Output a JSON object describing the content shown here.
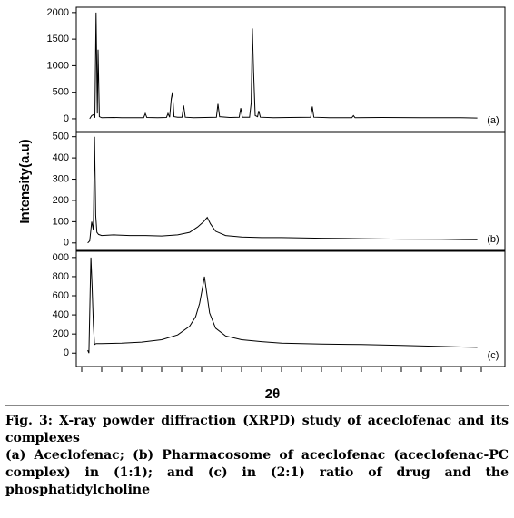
{
  "figure": {
    "xlabel": "2θ",
    "ylabel": "Intensity(a.u)"
  },
  "chart_data": [
    {
      "type": "line",
      "annotation": "(a)",
      "color": "#000000",
      "xlim": [
        0,
        100
      ],
      "ylim": [
        -240,
        2100
      ],
      "yticks": [
        0,
        500,
        1000,
        1500,
        2000
      ],
      "x": [
        2.0,
        2.5,
        3.0,
        3.3,
        3.6,
        3.9,
        4.1,
        4.4,
        5,
        8,
        10,
        12,
        15.5,
        15.9,
        16.3,
        19,
        21.2,
        21.6,
        22.0,
        22.4,
        22.7,
        23.1,
        24,
        25.1,
        25.5,
        25.9,
        28,
        33.7,
        34.1,
        34.5,
        37,
        39.4,
        39.8,
        40.2,
        42.0,
        42.4,
        42.7,
        43.0,
        43.4,
        44.0,
        44.3,
        44.7,
        48,
        52,
        57.3,
        57.7,
        58.1,
        62,
        67.6,
        68,
        68.4,
        75,
        85,
        95,
        99
      ],
      "values": [
        0,
        60,
        80,
        20,
        2000,
        100,
        1300,
        40,
        20,
        25,
        20,
        22,
        20,
        100,
        25,
        20,
        25,
        100,
        30,
        380,
        500,
        40,
        30,
        30,
        250,
        30,
        20,
        30,
        280,
        40,
        25,
        30,
        200,
        30,
        30,
        300,
        1700,
        900,
        60,
        40,
        150,
        30,
        20,
        25,
        30,
        230,
        30,
        20,
        20,
        60,
        20,
        25,
        20,
        20,
        15
      ]
    },
    {
      "type": "line",
      "annotation": "(b)",
      "color": "#000000",
      "xlim": [
        0,
        100
      ],
      "ylim": [
        -35,
        520
      ],
      "yticks": [
        0,
        100,
        200,
        300,
        400,
        500
      ],
      "x": [
        1.5,
        2.0,
        2.5,
        2.9,
        3.2,
        3.5,
        3.8,
        4.2,
        5,
        8,
        12,
        16,
        20,
        24,
        27,
        29,
        30.5,
        31.4,
        32.2,
        33.5,
        36,
        40,
        45,
        50,
        60,
        70,
        80,
        90,
        99
      ],
      "values": [
        0,
        10,
        100,
        60,
        500,
        130,
        50,
        40,
        35,
        38,
        35,
        35,
        33,
        38,
        50,
        75,
        100,
        120,
        90,
        55,
        35,
        28,
        25,
        25,
        22,
        20,
        18,
        17,
        15
      ]
    },
    {
      "type": "line",
      "annotation": "(c)",
      "color": "#000000",
      "xlim": [
        0,
        100
      ],
      "ylim": [
        -140,
        1065
      ],
      "yticks": [
        0,
        200,
        400,
        600,
        800,
        {
          "value": 1000,
          "label": "000"
        }
      ],
      "xticks": [
        0,
        5,
        10,
        15,
        20,
        25,
        30,
        35,
        40,
        45,
        50,
        55,
        60,
        65,
        70,
        75,
        80,
        85,
        90,
        95,
        100
      ],
      "x": [
        1.5,
        1.8,
        2.1,
        2.3,
        2.6,
        2.9,
        3.2,
        3.6,
        5,
        10,
        15,
        20,
        24,
        27,
        28.5,
        29.5,
        30.2,
        30.7,
        31.2,
        32,
        33.5,
        36,
        40,
        45,
        50,
        60,
        70,
        80,
        90,
        99
      ],
      "values": [
        30,
        0,
        600,
        1000,
        700,
        300,
        90,
        100,
        100,
        105,
        115,
        140,
        190,
        280,
        380,
        520,
        680,
        800,
        650,
        420,
        260,
        180,
        140,
        120,
        105,
        95,
        90,
        80,
        70,
        60
      ]
    }
  ],
  "caption": {
    "title": "Fig. 3: X-ray powder diffraction (XRPD) study of aceclofenac and its complexes",
    "text": "(a) Aceclofenac; (b) Pharmacosome of aceclofenac (aceclofenac-PC complex) in (1:1); and (c) in (2:1) ratio of drug and the phosphatidylcholine"
  }
}
